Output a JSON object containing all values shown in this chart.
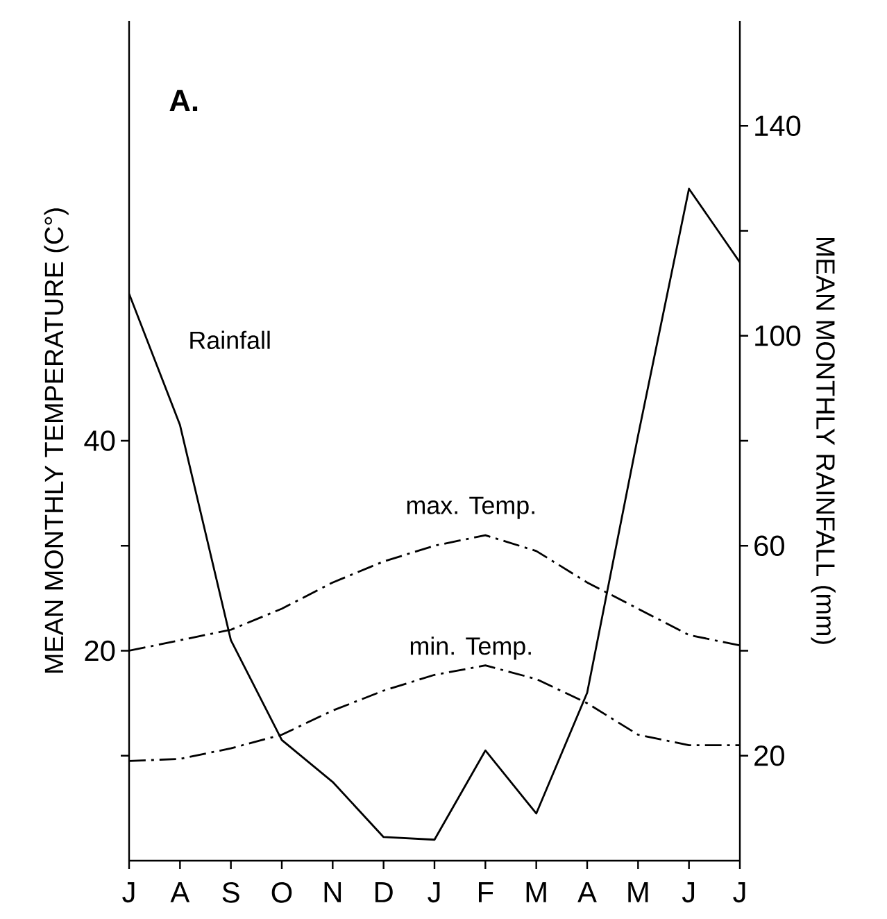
{
  "chart_data": {
    "type": "line",
    "categories": [
      "J",
      "A",
      "S",
      "O",
      "N",
      "D",
      "J",
      "F",
      "M",
      "A",
      "M",
      "J",
      "J"
    ],
    "ylabel": "MEAN MONTHLY TEMPERATURE (C°)",
    "y2label": "MEAN MONTHLY RAINFALL (mm)",
    "annotations": [
      "A."
    ],
    "ylim": [
      0,
      80
    ],
    "yticks": [
      {
        "value": 10,
        "label": null
      },
      20,
      {
        "value": 30,
        "label": null
      },
      40
    ],
    "y2lim": [
      0,
      160
    ],
    "y2ticks": [
      20,
      {
        "value": 40,
        "label": null
      },
      60,
      {
        "value": 80,
        "label": null
      },
      100,
      {
        "value": 120,
        "label": null
      },
      140
    ],
    "grid": false,
    "marker": "none",
    "series": [
      {
        "name": "Rainfall",
        "color": "#000000",
        "axis": "y2",
        "line_style": "solid",
        "values": [
          108,
          83,
          42,
          23,
          15,
          4.5,
          4,
          21,
          9,
          32,
          81,
          128,
          114
        ]
      },
      {
        "name": "max. Temp.",
        "color": "#000000",
        "line_style": "dashed",
        "values": [
          20,
          21,
          22,
          24,
          26.5,
          28.5,
          30,
          31,
          29.5,
          26.5,
          24,
          21.5,
          20.5
        ]
      },
      {
        "name": "min. Temp.",
        "color": "#000000",
        "line_style": "dashed",
        "values": [
          9.5,
          9.7,
          10.7,
          12,
          14.3,
          16.2,
          17.7,
          18.6,
          17.3,
          15,
          12,
          11,
          11
        ]
      }
    ]
  }
}
